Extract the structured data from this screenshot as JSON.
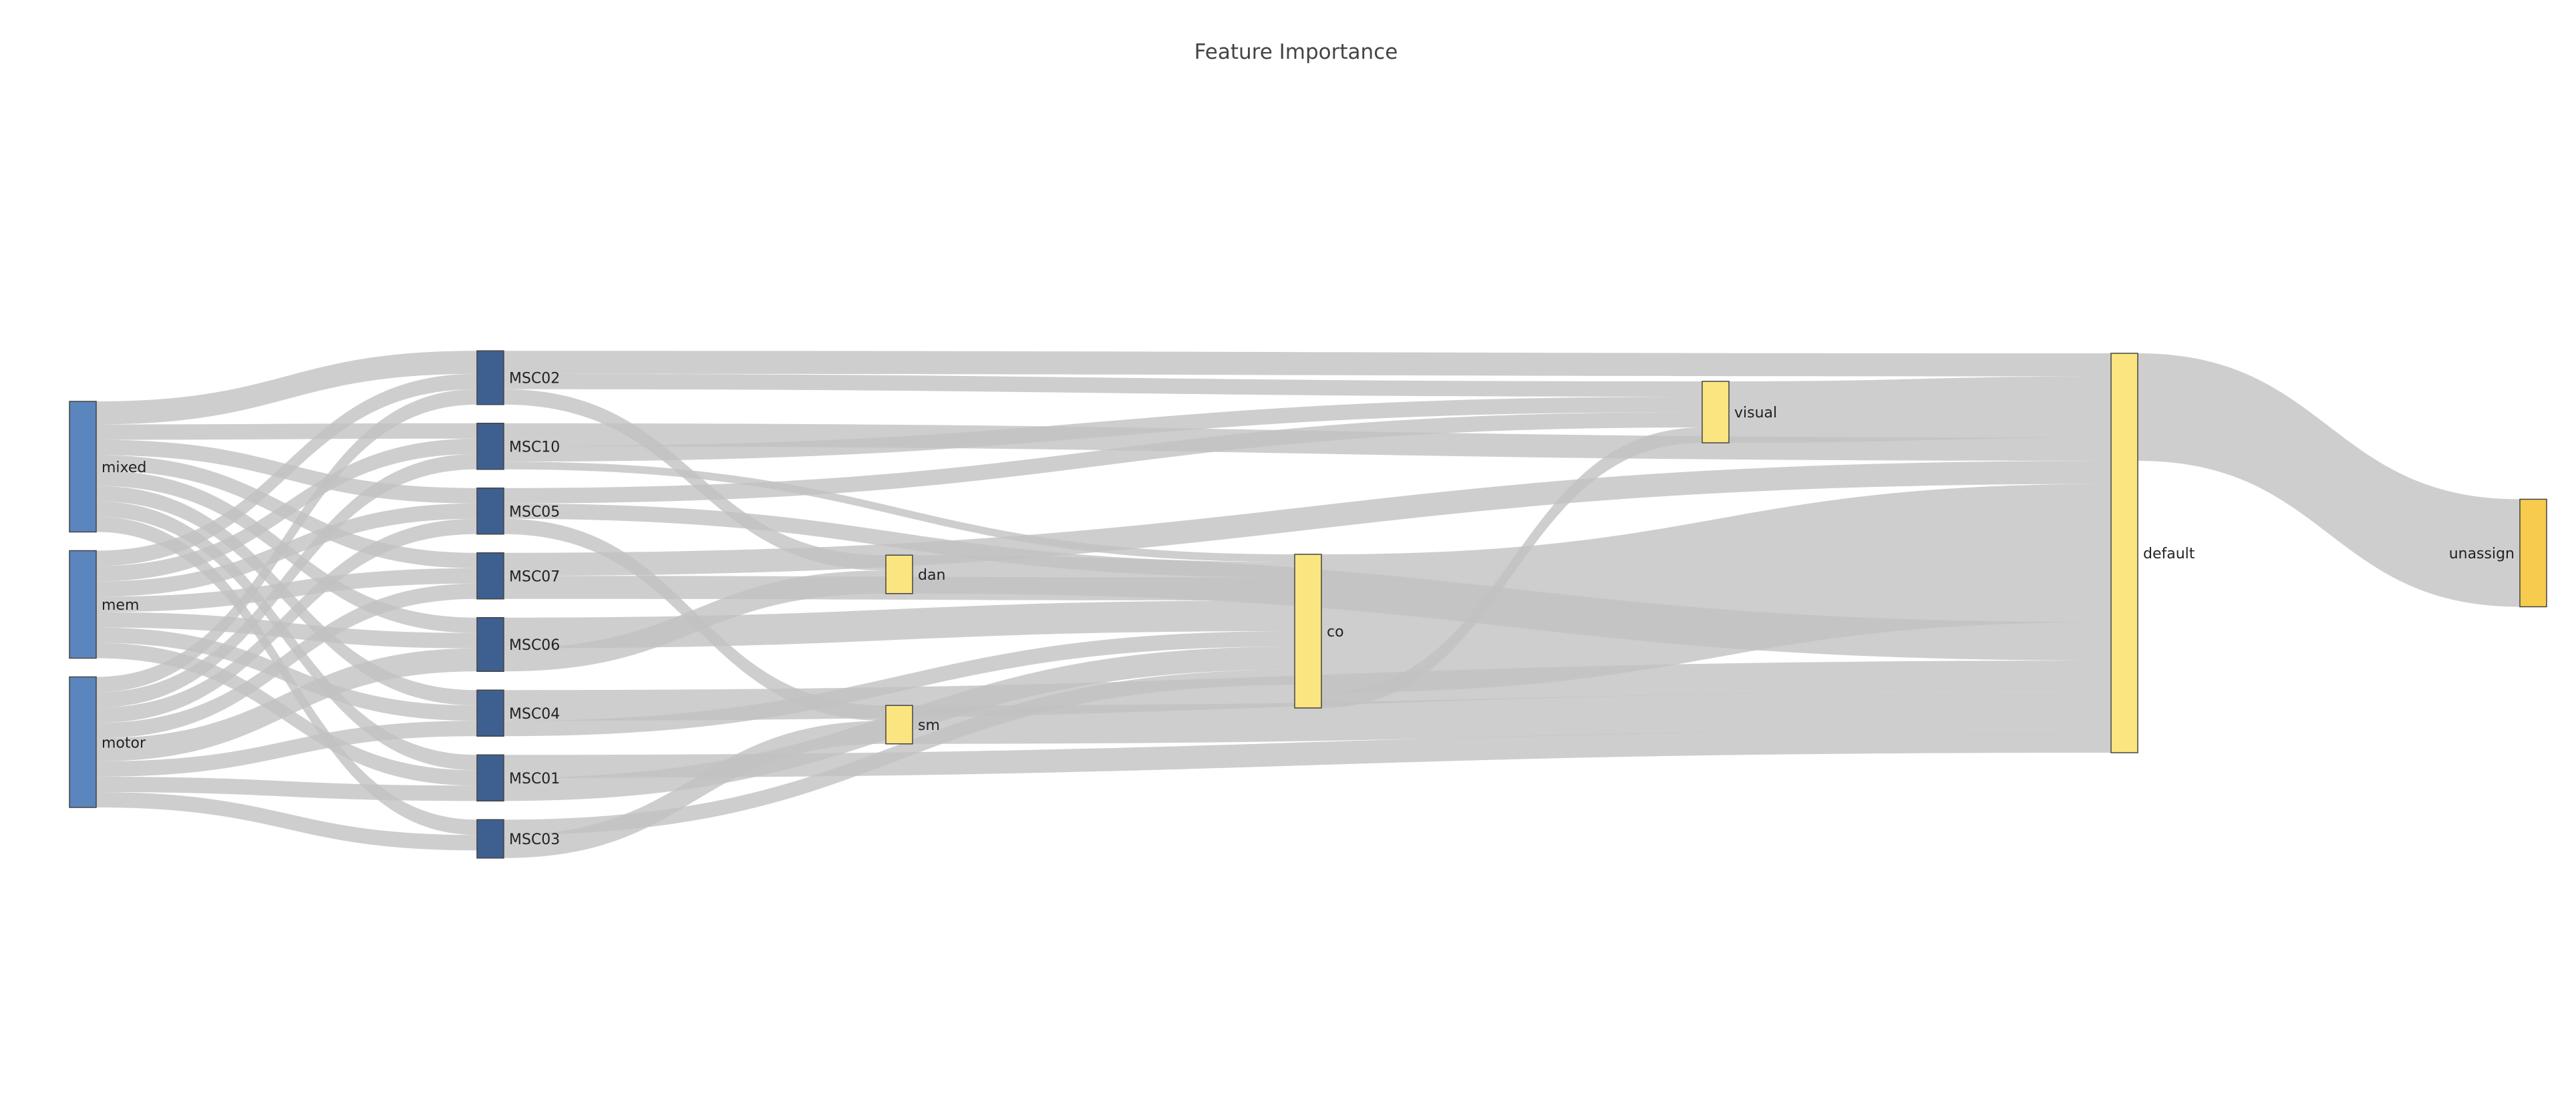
{
  "title": "Feature Importance",
  "colors": {
    "link": "#c2c2c2",
    "link_opacity": 0.8,
    "background": "#ffffff"
  },
  "nodes": [
    {
      "id": "mixed",
      "label": "mixed",
      "column": 0,
      "color": "#5b85bd"
    },
    {
      "id": "mem",
      "label": "mem",
      "column": 0,
      "color": "#5b85bd"
    },
    {
      "id": "motor",
      "label": "motor",
      "column": 0,
      "color": "#5b85bd"
    },
    {
      "id": "MSC02",
      "label": "MSC02",
      "column": 1,
      "color": "#3e6090"
    },
    {
      "id": "MSC10",
      "label": "MSC10",
      "column": 1,
      "color": "#3e6090"
    },
    {
      "id": "MSC05",
      "label": "MSC05",
      "column": 1,
      "color": "#3e6090"
    },
    {
      "id": "MSC07",
      "label": "MSC07",
      "column": 1,
      "color": "#3e6090"
    },
    {
      "id": "MSC06",
      "label": "MSC06",
      "column": 1,
      "color": "#3e6090"
    },
    {
      "id": "MSC04",
      "label": "MSC04",
      "column": 1,
      "color": "#3e6090"
    },
    {
      "id": "MSC01",
      "label": "MSC01",
      "column": 1,
      "color": "#3e6090"
    },
    {
      "id": "MSC03",
      "label": "MSC03",
      "column": 1,
      "color": "#3e6090"
    },
    {
      "id": "dan",
      "label": "dan",
      "column": 2,
      "color": "#fbe580"
    },
    {
      "id": "sm",
      "label": "sm",
      "column": 2,
      "color": "#fbe580"
    },
    {
      "id": "co",
      "label": "co",
      "column": 3,
      "color": "#fbe580"
    },
    {
      "id": "visual",
      "label": "visual",
      "column": 4,
      "color": "#fbe580"
    },
    {
      "id": "default",
      "label": "default",
      "column": 5,
      "color": "#fbe580"
    },
    {
      "id": "unassign",
      "label": "unassign",
      "column": 6,
      "color": "#f7cb4d"
    }
  ],
  "links": [
    {
      "source": "mixed",
      "target": "MSC02",
      "value": 3
    },
    {
      "source": "mixed",
      "target": "MSC10",
      "value": 2
    },
    {
      "source": "mixed",
      "target": "MSC05",
      "value": 2
    },
    {
      "source": "mixed",
      "target": "MSC07",
      "value": 2
    },
    {
      "source": "mixed",
      "target": "MSC06",
      "value": 2
    },
    {
      "source": "mixed",
      "target": "MSC04",
      "value": 2
    },
    {
      "source": "mixed",
      "target": "MSC01",
      "value": 2
    },
    {
      "source": "mixed",
      "target": "MSC03",
      "value": 2
    },
    {
      "source": "mem",
      "target": "MSC02",
      "value": 2
    },
    {
      "source": "mem",
      "target": "MSC10",
      "value": 2
    },
    {
      "source": "mem",
      "target": "MSC05",
      "value": 2
    },
    {
      "source": "mem",
      "target": "MSC07",
      "value": 2
    },
    {
      "source": "mem",
      "target": "MSC06",
      "value": 2
    },
    {
      "source": "mem",
      "target": "MSC04",
      "value": 2
    },
    {
      "source": "mem",
      "target": "MSC01",
      "value": 2
    },
    {
      "source": "motor",
      "target": "MSC02",
      "value": 2
    },
    {
      "source": "motor",
      "target": "MSC10",
      "value": 2
    },
    {
      "source": "motor",
      "target": "MSC05",
      "value": 2
    },
    {
      "source": "motor",
      "target": "MSC07",
      "value": 2
    },
    {
      "source": "motor",
      "target": "MSC06",
      "value": 3
    },
    {
      "source": "motor",
      "target": "MSC04",
      "value": 2
    },
    {
      "source": "motor",
      "target": "MSC01",
      "value": 2
    },
    {
      "source": "motor",
      "target": "MSC03",
      "value": 2
    },
    {
      "source": "MSC02",
      "target": "default",
      "value": 3
    },
    {
      "source": "MSC02",
      "target": "visual",
      "value": 2
    },
    {
      "source": "MSC02",
      "target": "dan",
      "value": 2
    },
    {
      "source": "MSC10",
      "target": "default",
      "value": 3
    },
    {
      "source": "MSC10",
      "target": "visual",
      "value": 2
    },
    {
      "source": "MSC10",
      "target": "co",
      "value": 1
    },
    {
      "source": "MSC05",
      "target": "co",
      "value": 2
    },
    {
      "source": "MSC05",
      "target": "visual",
      "value": 2
    },
    {
      "source": "MSC05",
      "target": "sm",
      "value": 2
    },
    {
      "source": "MSC07",
      "target": "co",
      "value": 3
    },
    {
      "source": "MSC07",
      "target": "default",
      "value": 3
    },
    {
      "source": "MSC06",
      "target": "dan",
      "value": 3
    },
    {
      "source": "MSC06",
      "target": "co",
      "value": 4
    },
    {
      "source": "MSC04",
      "target": "co",
      "value": 2
    },
    {
      "source": "MSC04",
      "target": "default",
      "value": 4
    },
    {
      "source": "MSC01",
      "target": "co",
      "value": 3
    },
    {
      "source": "MSC01",
      "target": "default",
      "value": 3
    },
    {
      "source": "MSC03",
      "target": "sm",
      "value": 3
    },
    {
      "source": "MSC03",
      "target": "co",
      "value": 2
    },
    {
      "source": "dan",
      "target": "default",
      "value": 5
    },
    {
      "source": "sm",
      "target": "default",
      "value": 5
    },
    {
      "source": "co",
      "target": "visual",
      "value": 2
    },
    {
      "source": "co",
      "target": "default",
      "value": 18
    },
    {
      "source": "visual",
      "target": "default",
      "value": 8
    },
    {
      "source": "default",
      "target": "unassign",
      "value": 14
    }
  ]
}
